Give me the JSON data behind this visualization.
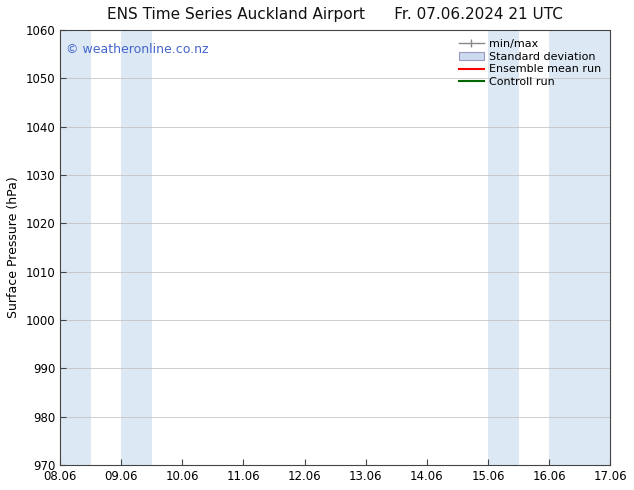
{
  "title_left": "ENS Time Series Auckland Airport",
  "title_right": "Fr. 07.06.2024 21 UTC",
  "ylabel": "Surface Pressure (hPa)",
  "ylim": [
    970,
    1060
  ],
  "yticks": [
    970,
    980,
    990,
    1000,
    1010,
    1020,
    1030,
    1040,
    1050,
    1060
  ],
  "xlabels": [
    "08.06",
    "09.06",
    "10.06",
    "11.06",
    "12.06",
    "13.06",
    "14.06",
    "15.06",
    "16.06",
    "17.06"
  ],
  "x_values": [
    0,
    1,
    2,
    3,
    4,
    5,
    6,
    7,
    8,
    9
  ],
  "watermark": "© weatheronline.co.nz",
  "watermark_color": "#4466cc",
  "bg_color": "#ffffff",
  "plot_bg_color": "#ffffff",
  "shaded_bands": [
    {
      "xstart": 0.0,
      "xend": 0.5,
      "color": "#dce9f5"
    },
    {
      "xstart": 1.0,
      "xend": 1.5,
      "color": "#dce9f5"
    },
    {
      "xstart": 7.0,
      "xend": 7.5,
      "color": "#dce9f5"
    },
    {
      "xstart": 8.0,
      "xend": 8.5,
      "color": "#dce9f5"
    },
    {
      "xstart": 8.5,
      "xend": 9.0,
      "color": "#dce9f5"
    }
  ],
  "legend_items": [
    {
      "label": "min/max",
      "type": "minmax"
    },
    {
      "label": "Standard deviation",
      "type": "stddev"
    },
    {
      "label": "Ensemble mean run",
      "type": "line",
      "color": "#ff0000"
    },
    {
      "label": "Controll run",
      "type": "line",
      "color": "#006600"
    }
  ],
  "title_fontsize": 11,
  "tick_fontsize": 8.5,
  "label_fontsize": 9,
  "watermark_fontsize": 9,
  "legend_fontsize": 8,
  "grid_color": "#bbbbbb",
  "axis_color": "#444444"
}
